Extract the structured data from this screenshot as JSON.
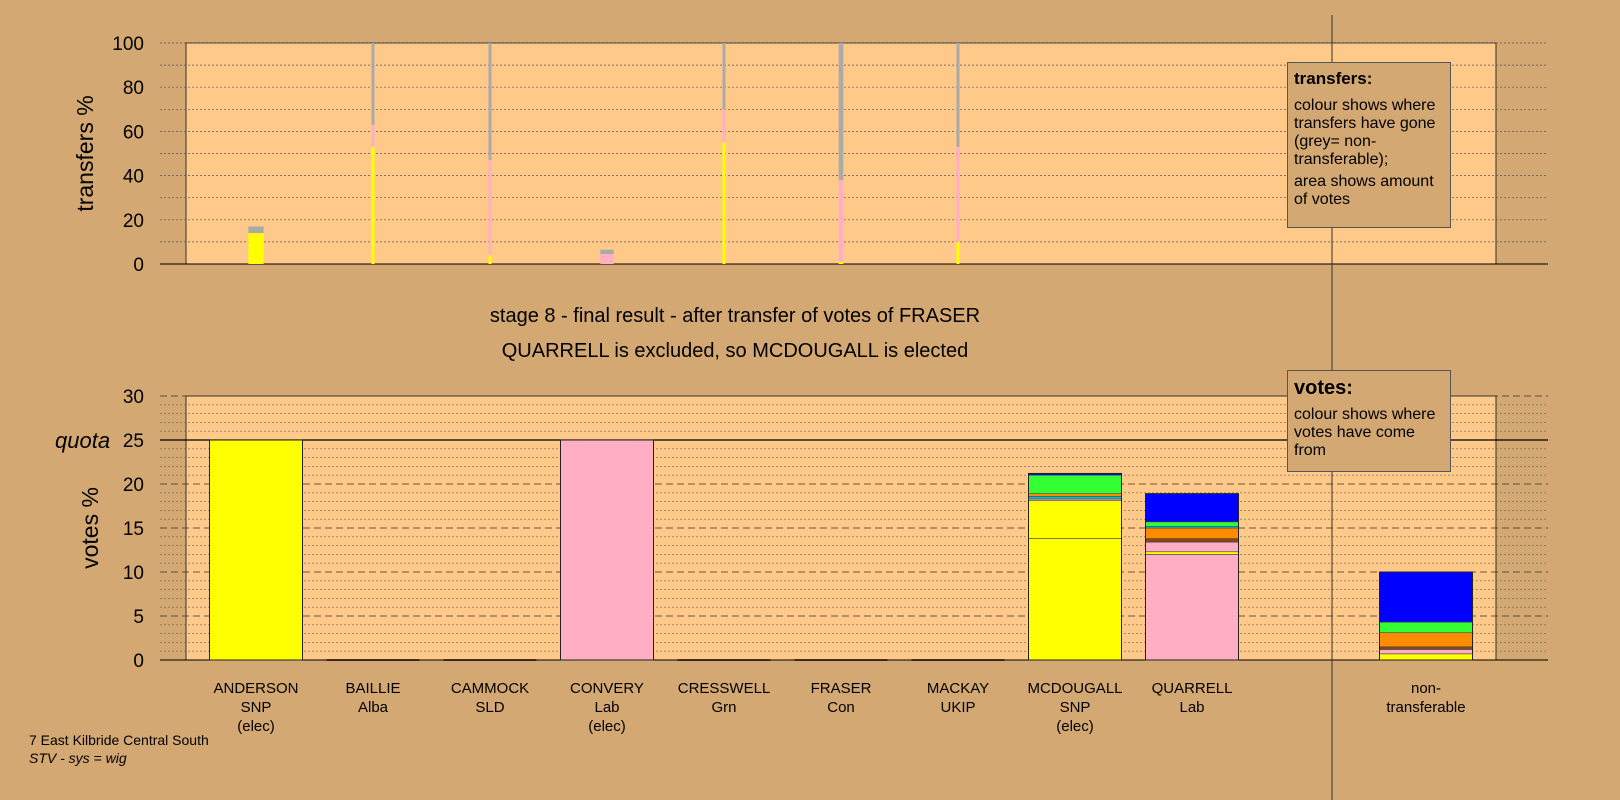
{
  "colors": {
    "background": "#d4a872",
    "plot": "#ffc98a",
    "SNP": "#ffff00",
    "Lab": "#ffaec4",
    "nt": "#aaaaaa",
    "Grn": "#33ff33",
    "Alba": "#00c8c8",
    "SLD": "#ff8c00",
    "Con": "#0000ff",
    "UKIP": "#8b4513"
  },
  "chart_data": [
    {
      "type": "bar",
      "stacked": true,
      "ylabel": "transfers %",
      "ylim": [
        0,
        100
      ],
      "yticks": [
        "0",
        "20",
        "40",
        "60",
        "80",
        "100"
      ],
      "note": {
        "title": "transfers:",
        "lines": [
          "colour shows where transfers have gone (grey= non-transferable);",
          "area shows amount of votes"
        ]
      },
      "bars": [
        {
          "candidate": "ANDERSON",
          "width": 0.13,
          "segments": [
            {
              "c": "SNP",
              "v": 14
            },
            {
              "c": "nt",
              "v": 3
            }
          ]
        },
        {
          "candidate": "BAILLIE",
          "width": 0.007,
          "segments": [
            {
              "c": "SNP",
              "v": 53
            },
            {
              "c": "Lab",
              "v": 10
            },
            {
              "c": "nt",
              "v": 37
            }
          ]
        },
        {
          "candidate": "CAMMOCK",
          "width": 0.011,
          "segments": [
            {
              "c": "SNP",
              "v": 4
            },
            {
              "c": "Lab",
              "v": 43
            },
            {
              "c": "nt",
              "v": 53
            }
          ]
        },
        {
          "candidate": "CONVERY",
          "width": 0.115,
          "segments": [
            {
              "c": "Lab",
              "v": 4.5
            },
            {
              "c": "nt",
              "v": 2
            }
          ]
        },
        {
          "candidate": "CRESSWELL",
          "width": 0.017,
          "segments": [
            {
              "c": "SNP",
              "v": 55
            },
            {
              "c": "Lab",
              "v": 15
            },
            {
              "c": "nt",
              "v": 30
            }
          ]
        },
        {
          "candidate": "FRASER",
          "width": 0.04,
          "segments": [
            {
              "c": "SNP",
              "v": 1
            },
            {
              "c": "Lab",
              "v": 37
            },
            {
              "c": "nt",
              "v": 62
            }
          ]
        },
        {
          "candidate": "MACKAY",
          "width": 0.003,
          "segments": [
            {
              "c": "SNP",
              "v": 10
            },
            {
              "c": "Lab",
              "v": 43
            },
            {
              "c": "nt",
              "v": 47
            }
          ]
        }
      ]
    },
    {
      "type": "bar",
      "stacked": true,
      "ylabel": "votes %",
      "ylim": [
        0,
        30
      ],
      "yticks": [
        "0",
        "5",
        "10",
        "15",
        "20",
        "25",
        "30"
      ],
      "quota": {
        "label": "quota",
        "value": 25
      },
      "title": "stage 8 - final result - after transfer of votes of FRASER",
      "subtitle": "QUARRELL is excluded, so MCDOUGALL is elected",
      "note": {
        "title": "votes:",
        "lines": [
          "colour shows where votes have come from"
        ]
      },
      "candidates": [
        {
          "name": "ANDERSON",
          "party": "SNP",
          "status": "(elec)",
          "segments": [
            {
              "c": "SNP",
              "v": 25
            }
          ]
        },
        {
          "name": "BAILLIE",
          "party": "Alba",
          "status": "",
          "segments": []
        },
        {
          "name": "CAMMOCK",
          "party": "SLD",
          "status": "",
          "segments": []
        },
        {
          "name": "CONVERY",
          "party": "Lab",
          "status": "(elec)",
          "segments": [
            {
              "c": "Lab",
              "v": 25
            }
          ]
        },
        {
          "name": "CRESSWELL",
          "party": "Grn",
          "status": "",
          "segments": []
        },
        {
          "name": "FRASER",
          "party": "Con",
          "status": "",
          "segments": []
        },
        {
          "name": "MACKAY",
          "party": "UKIP",
          "status": "",
          "segments": []
        },
        {
          "name": "MCDOUGALL",
          "party": "SNP",
          "status": "(elec)",
          "segments": [
            {
              "c": "SNP",
              "v": 13.8
            },
            {
              "c": "SNP",
              "v": 4.3
            },
            {
              "c": "Lab",
              "v": 0.2
            },
            {
              "c": "Alba",
              "v": 0.3
            },
            {
              "c": "SLD",
              "v": 0.3
            },
            {
              "c": "Grn",
              "v": 2.1
            },
            {
              "c": "Con",
              "v": 0.2
            }
          ]
        },
        {
          "name": "QUARRELL",
          "party": "Lab",
          "status": "",
          "segments": [
            {
              "c": "Lab",
              "v": 12.0
            },
            {
              "c": "SNP",
              "v": 0.3
            },
            {
              "c": "Lab",
              "v": 1.1
            },
            {
              "c": "UKIP",
              "v": 0.4
            },
            {
              "c": "SLD",
              "v": 1.2
            },
            {
              "c": "Alba",
              "v": 0.2
            },
            {
              "c": "Grn",
              "v": 0.5
            },
            {
              "c": "Con",
              "v": 3.2
            }
          ]
        },
        {
          "name": "non-",
          "party": "transferable",
          "status": "",
          "segments": [
            {
              "c": "SNP",
              "v": 0.7
            },
            {
              "c": "Lab",
              "v": 0.5
            },
            {
              "c": "UKIP",
              "v": 0.3
            },
            {
              "c": "SLD",
              "v": 1.6
            },
            {
              "c": "Grn",
              "v": 1.2
            },
            {
              "c": "Con",
              "v": 5.7
            }
          ]
        }
      ]
    }
  ],
  "footer": {
    "line1": "7 East Kilbride Central South",
    "line2": "STV - sys = wig"
  }
}
